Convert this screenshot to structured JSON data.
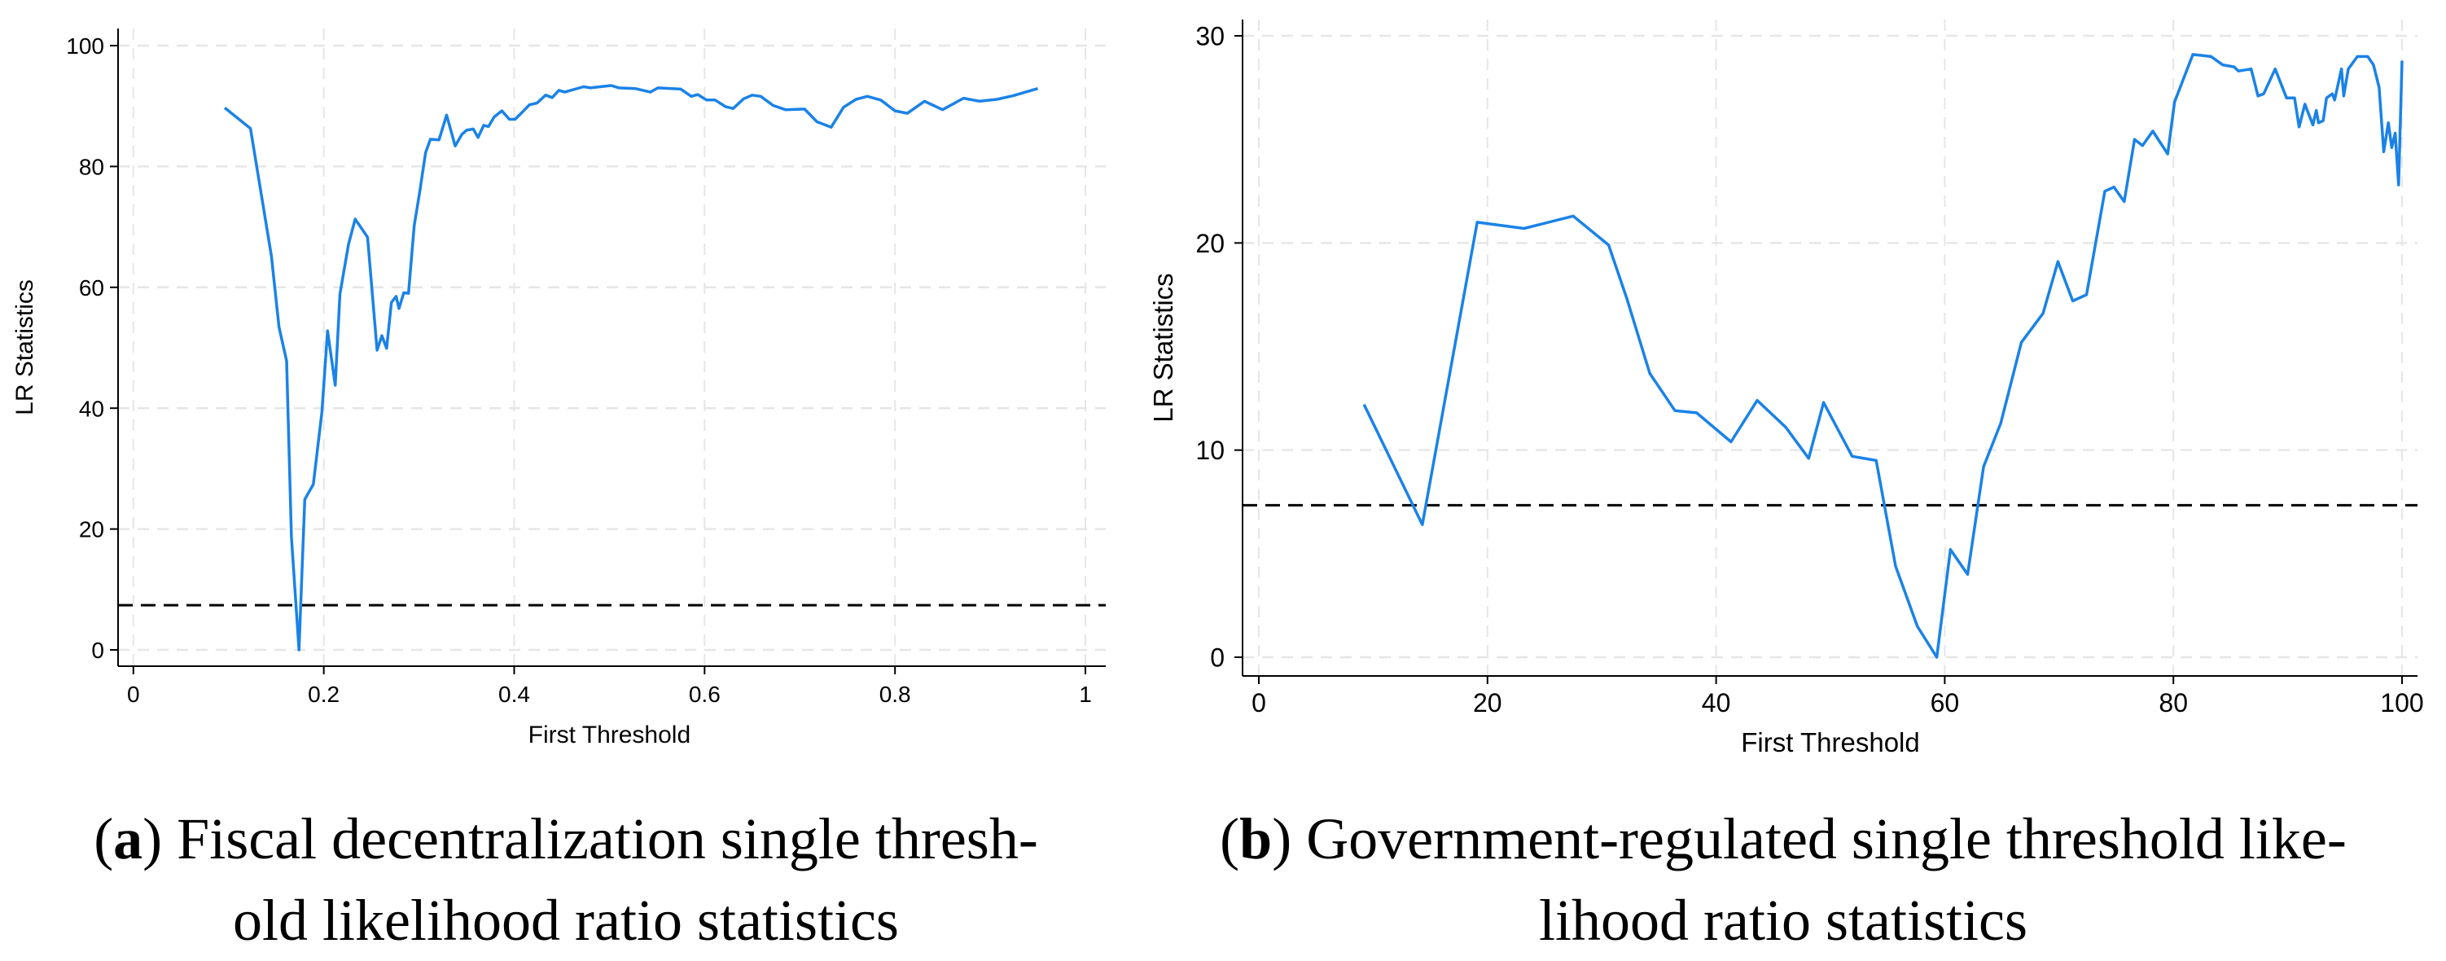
{
  "colors": {
    "series": "#1a82e8",
    "threshold": "#000000",
    "grid": "#e6e6e6",
    "axis": "#000000"
  },
  "chart_data": [
    {
      "type": "line",
      "title": "",
      "xlabel": "First Threshold",
      "ylabel": "LR Statistics",
      "xlim": [
        0,
        1
      ],
      "ylim": [
        0,
        100
      ],
      "xticks": [
        0,
        0.2,
        0.4,
        0.6,
        0.8,
        1
      ],
      "xtick_labels": [
        "0",
        "0.2",
        "0.4",
        "0.6",
        "0.8",
        "1"
      ],
      "yticks": [
        0,
        20,
        40,
        60,
        80,
        100
      ],
      "ytick_labels": [
        "0",
        "20",
        "40",
        "60",
        "80",
        "100"
      ],
      "grid": true,
      "threshold_line": 7.4,
      "series": [
        {
          "x": [
            0.096,
            0.123,
            0.145,
            0.153,
            0.161,
            0.166,
            0.174,
            0.18,
            0.189,
            0.198,
            0.204,
            0.212,
            0.217,
            0.226,
            0.233,
            0.246,
            0.256,
            0.261,
            0.266,
            0.271,
            0.276,
            0.279,
            0.284,
            0.289,
            0.295,
            0.301,
            0.307,
            0.312,
            0.321,
            0.329,
            0.338,
            0.345,
            0.35,
            0.357,
            0.362,
            0.368,
            0.373,
            0.379,
            0.387,
            0.395,
            0.401,
            0.408,
            0.416,
            0.424,
            0.433,
            0.44,
            0.447,
            0.453,
            0.473,
            0.48,
            0.502,
            0.51,
            0.527,
            0.543,
            0.551,
            0.575,
            0.586,
            0.593,
            0.602,
            0.611,
            0.622,
            0.63,
            0.641,
            0.65,
            0.659,
            0.672,
            0.685,
            0.705,
            0.718,
            0.733,
            0.746,
            0.759,
            0.771,
            0.785,
            0.8,
            0.813,
            0.831,
            0.85,
            0.872,
            0.889,
            0.907,
            0.924,
            0.95
          ],
          "y": [
            89.7,
            86.3,
            65.2,
            53.4,
            47.8,
            18.7,
            0,
            24.9,
            27.4,
            39.3,
            52.8,
            43.8,
            58.9,
            67.1,
            71.3,
            68.3,
            49.6,
            52.0,
            49.9,
            57.5,
            58.5,
            56.5,
            59.1,
            59.0,
            70.2,
            76.0,
            82.3,
            84.5,
            84.4,
            88.5,
            83.4,
            85.3,
            86.0,
            86.2,
            84.8,
            86.8,
            86.6,
            88.2,
            89.2,
            87.8,
            87.8,
            88.9,
            90.2,
            90.5,
            91.8,
            91.4,
            92.6,
            92.3,
            93.2,
            93.0,
            93.4,
            93.0,
            92.9,
            92.3,
            93.0,
            92.8,
            91.6,
            91.9,
            91.0,
            91.0,
            89.9,
            89.6,
            91.2,
            91.8,
            91.6,
            90.1,
            89.4,
            89.5,
            87.4,
            86.5,
            89.8,
            91.1,
            91.6,
            91.0,
            89.2,
            88.8,
            90.8,
            89.4,
            91.3,
            90.8,
            91.1,
            91.7,
            92.9
          ]
        }
      ]
    },
    {
      "type": "line",
      "title": "",
      "xlabel": "First Threshold",
      "ylabel": "LR Statistics",
      "xlim": [
        0,
        100
      ],
      "ylim": [
        0,
        30
      ],
      "xticks": [
        0,
        20,
        40,
        60,
        80,
        100
      ],
      "xtick_labels": [
        "0",
        "20",
        "40",
        "60",
        "80",
        "100"
      ],
      "yticks": [
        0,
        10,
        20,
        30
      ],
      "ytick_labels": [
        "0",
        "10",
        "20",
        "30"
      ],
      "grid": true,
      "threshold_line": 7.34,
      "series": [
        {
          "x": [
            9.2,
            14.3,
            19.1,
            23.2,
            27.5,
            30.6,
            32.2,
            34.2,
            36.4,
            38.3,
            41.3,
            43.6,
            46.1,
            48.1,
            49.4,
            51.9,
            54.0,
            55.7,
            57.6,
            59.3,
            60.5,
            62.0,
            63.4,
            64.9,
            66.7,
            68.6,
            69.9,
            71.2,
            72.4,
            74.0,
            74.8,
            75.7,
            76.6,
            77.3,
            78.2,
            79.5,
            80.1,
            81.7,
            83.3,
            84.3,
            85.3,
            85.7,
            86.8,
            87.4,
            87.9,
            88.9,
            89.9,
            90.6,
            91.0,
            91.5,
            92.2,
            92.5,
            92.7,
            93.1,
            93.4,
            93.9,
            94.1,
            94.7,
            94.9,
            95.3,
            96.1,
            97.0,
            97.5,
            98.0,
            98.4,
            98.8,
            99.1,
            99.4,
            99.7,
            100
          ],
          "y": [
            12.2,
            6.4,
            21.0,
            20.7,
            21.3,
            19.9,
            17.3,
            13.7,
            11.9,
            11.8,
            10.4,
            12.4,
            11.1,
            9.6,
            12.3,
            9.7,
            9.5,
            4.4,
            1.5,
            0,
            5.2,
            4.0,
            9.2,
            11.3,
            15.2,
            16.6,
            19.1,
            17.2,
            17.5,
            22.5,
            22.7,
            22.0,
            25.0,
            24.7,
            25.4,
            24.3,
            26.8,
            29.1,
            29.0,
            28.6,
            28.5,
            28.3,
            28.4,
            27.1,
            27.2,
            28.4,
            27.0,
            27.0,
            25.6,
            26.7,
            25.7,
            26.4,
            25.8,
            25.9,
            27.0,
            27.2,
            26.9,
            28.4,
            27.1,
            28.4,
            29.0,
            29.0,
            28.6,
            27.5,
            24.4,
            25.8,
            24.6,
            25.3,
            22.8,
            28.8
          ]
        }
      ]
    }
  ],
  "captions": [
    {
      "label": "a",
      "line1": "Fiscal decentralization single thresh-",
      "line2": "old likelihood ratio statistics"
    },
    {
      "label": "b",
      "line1": "Government-regulated single threshold like-",
      "line2": "lihood ratio statistics"
    }
  ]
}
